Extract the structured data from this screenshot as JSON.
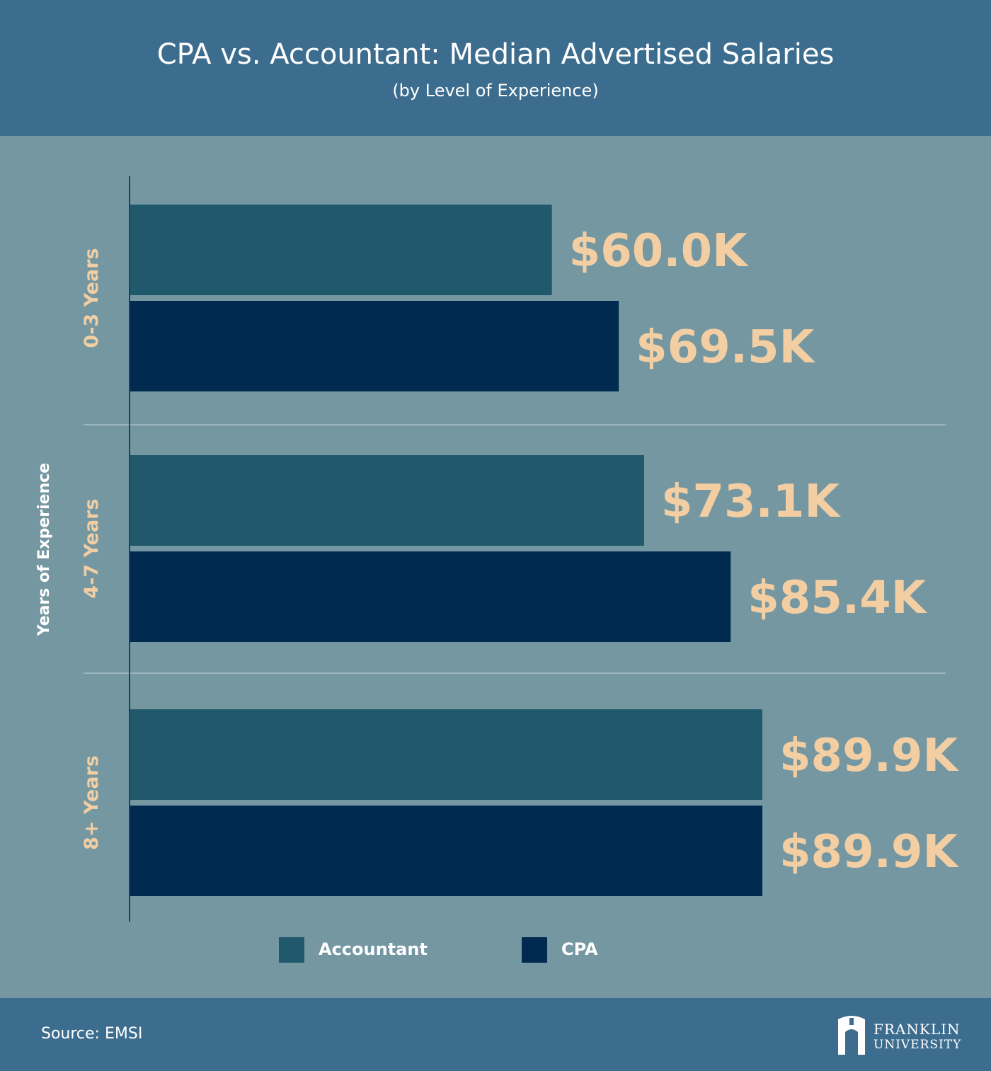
{
  "chart_data": {
    "type": "bar",
    "orientation": "horizontal",
    "title": "CPA vs. Accountant: Median Advertised Salaries",
    "subtitle": "(by Level of Experience)",
    "ylabel": "Years of Experience",
    "categories": [
      "0-3 Years",
      "4-7 Years",
      "8+ Years"
    ],
    "series": [
      {
        "name": "Accountant",
        "color": "#20596c",
        "values": [
          60.0,
          73.1,
          89.9
        ],
        "labels": [
          "$60.0K",
          "$73.1K",
          "$89.9K"
        ]
      },
      {
        "name": "CPA",
        "color": "#012a50",
        "values": [
          69.5,
          85.4,
          89.9
        ],
        "labels": [
          "$69.5K",
          "$85.4K",
          "$89.9K"
        ]
      }
    ],
    "xlim": [
      0,
      90
    ],
    "legend_position": "bottom-center",
    "colors": {
      "label": "#f2cea2",
      "category": "#f2cea2"
    }
  },
  "footer": {
    "source": "Source: EMSI",
    "logo_icon": "franklin-university-logo-icon",
    "logo_line1": "FRANKLIN",
    "logo_line2": "UNIVERSITY"
  }
}
